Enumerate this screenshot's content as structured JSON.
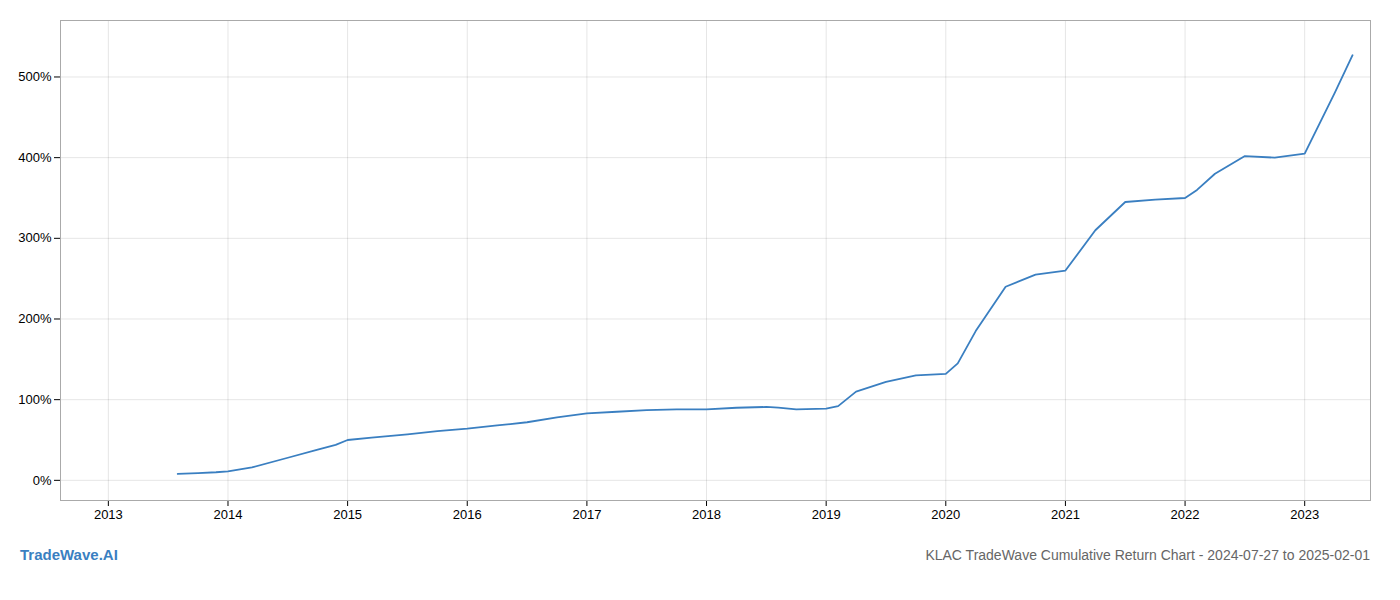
{
  "chart_data": {
    "type": "line",
    "title": "KLAC TradeWave Cumulative Return Chart - 2024-07-27 to 2025-02-01",
    "annotations": [
      {
        "text": "TradeWave.AI",
        "color": "#3a7fc1"
      }
    ],
    "color": "#3a7fc1",
    "grid": true,
    "x": [
      2013.58,
      2013.75,
      2013.9,
      2014.0,
      2014.2,
      2014.5,
      2014.75,
      2014.9,
      2015.0,
      2015.2,
      2015.5,
      2015.75,
      2016.0,
      2016.25,
      2016.5,
      2016.75,
      2017.0,
      2017.25,
      2017.5,
      2017.75,
      2018.0,
      2018.25,
      2018.5,
      2018.6,
      2018.75,
      2019.0,
      2019.1,
      2019.25,
      2019.5,
      2019.75,
      2020.0,
      2020.1,
      2020.25,
      2020.5,
      2020.75,
      2021.0,
      2021.25,
      2021.5,
      2021.75,
      2022.0,
      2022.1,
      2022.25,
      2022.5,
      2022.75,
      2023.0,
      2023.25,
      2023.4
    ],
    "values": [
      8,
      9,
      10,
      11,
      16,
      28,
      38,
      44,
      50,
      53,
      57,
      61,
      64,
      68,
      72,
      78,
      83,
      85,
      87,
      88,
      88,
      90,
      91,
      90,
      88,
      89,
      92,
      110,
      122,
      130,
      132,
      145,
      185,
      240,
      255,
      260,
      310,
      345,
      348,
      350,
      360,
      380,
      402,
      400,
      405,
      480,
      527
    ],
    "xlim": [
      2012.6,
      2023.55
    ],
    "xticks": [
      2013,
      2014,
      2015,
      2016,
      2017,
      2018,
      2019,
      2020,
      2021,
      2022,
      2023
    ],
    "ylim": [
      -25,
      570
    ],
    "yticks": [
      {
        "value": 0,
        "label": "0%"
      },
      {
        "value": 100,
        "label": "100%"
      },
      {
        "value": 200,
        "label": "200%"
      },
      {
        "value": 300,
        "label": "300%"
      },
      {
        "value": 400,
        "label": "400%"
      },
      {
        "value": 500,
        "label": "500%"
      }
    ]
  }
}
